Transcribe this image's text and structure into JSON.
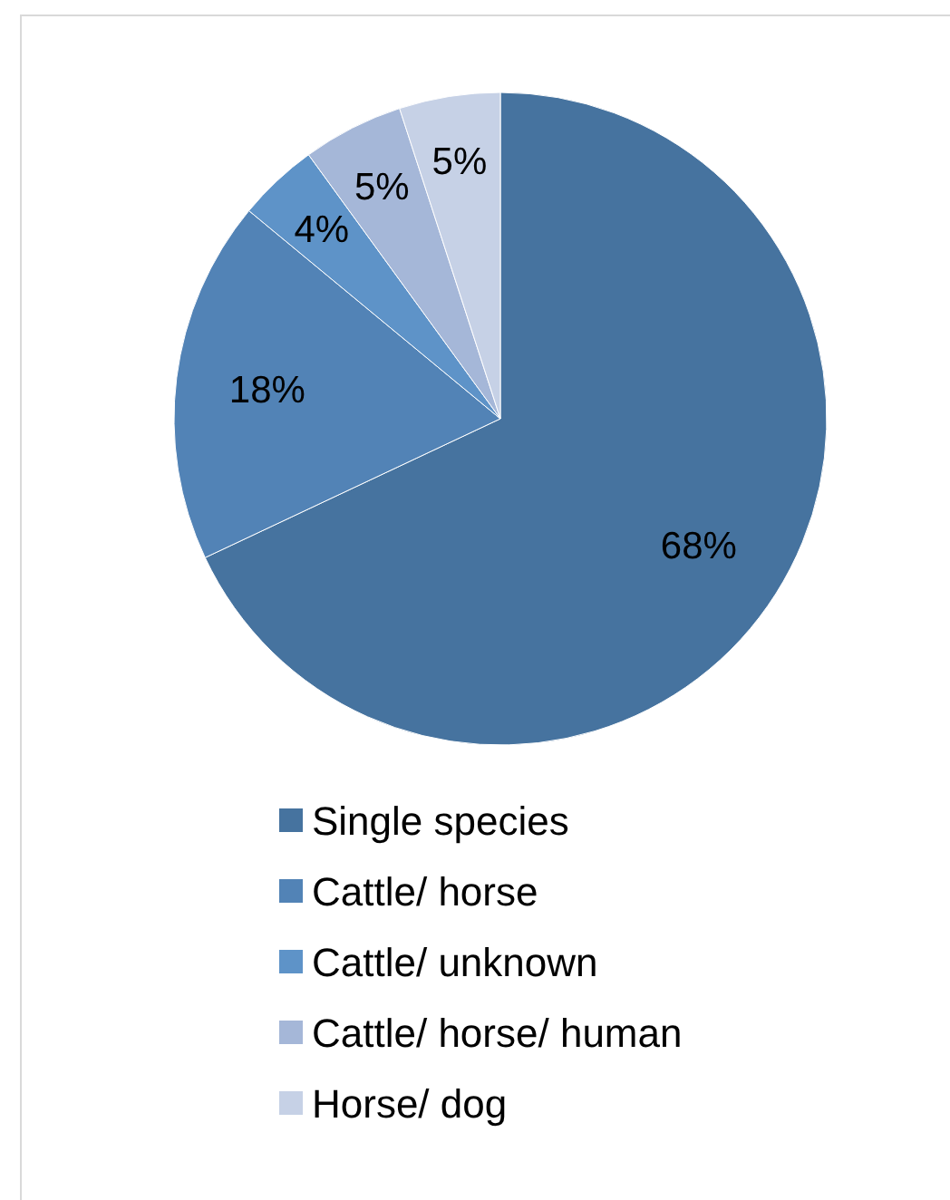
{
  "chart_data": {
    "type": "pie",
    "categories": [
      "Single species",
      "Cattle/ horse",
      "Cattle/ unknown",
      "Cattle/ horse/ human",
      "Horse/ dog"
    ],
    "values": [
      68,
      18,
      4,
      5,
      5
    ],
    "colors": [
      "#46739f",
      "#5283b6",
      "#5e93c8",
      "#a5b7d8",
      "#c6d1e6"
    ],
    "value_labels": [
      "68%",
      "18%",
      "4%",
      "5%",
      "5%"
    ],
    "legend": "bottom"
  }
}
